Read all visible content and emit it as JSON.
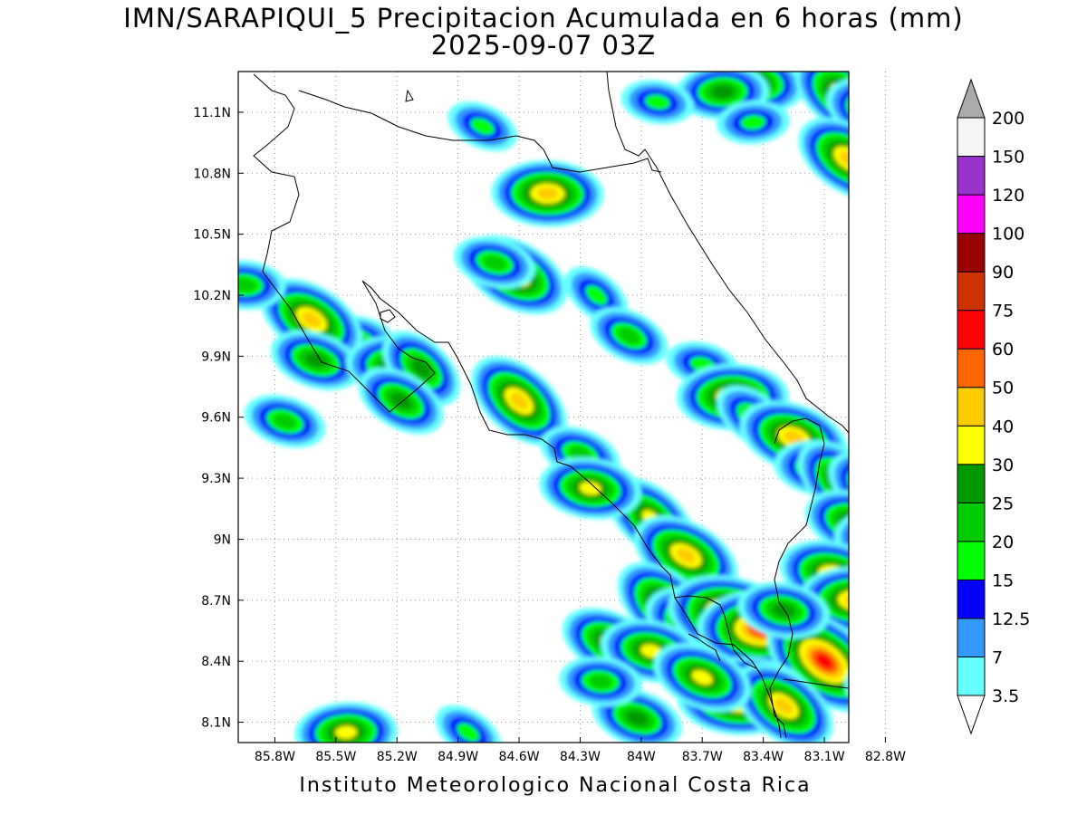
{
  "title_line1": "IMN/SARAPIQUI_5 Precipitacion Acumulada en 6 horas (mm)",
  "title_line2": "2025-09-07 03Z",
  "credit": "Instituto Meteorologico Nacional Costa Rica",
  "map": {
    "lon_labels": [
      "85.8W",
      "85.5W",
      "85.2W",
      "84.9W",
      "84.6W",
      "84.3W",
      "84W",
      "83.7W",
      "83.4W",
      "83.1W",
      "82.8W"
    ],
    "lat_labels": [
      "11.1N",
      "10.8N",
      "10.5N",
      "10.2N",
      "9.9N",
      "9.6N",
      "9.3N",
      "9N",
      "8.7N",
      "8.4N",
      "8.1N"
    ]
  },
  "colorbar": {
    "levels": [
      {
        "label": "3.5",
        "color": "#66ffff"
      },
      {
        "label": "7",
        "color": "#3399ff"
      },
      {
        "label": "12.5",
        "color": "#0000ff"
      },
      {
        "label": "15",
        "color": "#00ff00"
      },
      {
        "label": "20",
        "color": "#00cc00"
      },
      {
        "label": "25",
        "color": "#009900"
      },
      {
        "label": "30",
        "color": "#ffff00"
      },
      {
        "label": "40",
        "color": "#ffcc00"
      },
      {
        "label": "50",
        "color": "#ff6600"
      },
      {
        "label": "60",
        "color": "#ff0000"
      },
      {
        "label": "75",
        "color": "#cc3300"
      },
      {
        "label": "90",
        "color": "#990000"
      },
      {
        "label": "100",
        "color": "#ff00ff"
      },
      {
        "label": "120",
        "color": "#9933cc"
      },
      {
        "label": "150",
        "color": "#f5f5f5"
      },
      {
        "label": "200",
        "color": "#aaaaaa"
      }
    ]
  },
  "rain_cells": [
    {
      "lon": -85.46,
      "lat": 9.95,
      "max": 30
    },
    {
      "lon": -85.62,
      "lat": 10.08,
      "max": 40
    },
    {
      "lon": -85.6,
      "lat": 9.88,
      "max": 25
    },
    {
      "lon": -85.2,
      "lat": 9.85,
      "max": 30
    },
    {
      "lon": -85.08,
      "lat": 9.84,
      "max": 25
    },
    {
      "lon": -85.18,
      "lat": 9.68,
      "max": 25
    },
    {
      "lon": -85.75,
      "lat": 9.58,
      "max": 20
    },
    {
      "lon": -85.95,
      "lat": 10.25,
      "max": 20
    },
    {
      "lon": -84.6,
      "lat": 9.68,
      "max": 40
    },
    {
      "lon": -84.62,
      "lat": 10.3,
      "max": 40
    },
    {
      "lon": -84.72,
      "lat": 10.36,
      "max": 20
    },
    {
      "lon": -84.46,
      "lat": 10.7,
      "max": 40
    },
    {
      "lon": -84.22,
      "lat": 10.2,
      "max": 15
    },
    {
      "lon": -84.06,
      "lat": 10.0,
      "max": 20
    },
    {
      "lon": -83.7,
      "lat": 9.86,
      "max": 15
    },
    {
      "lon": -83.55,
      "lat": 9.7,
      "max": 40
    },
    {
      "lon": -83.45,
      "lat": 9.6,
      "max": 20
    },
    {
      "lon": -84.78,
      "lat": 11.03,
      "max": 15
    },
    {
      "lon": -83.45,
      "lat": 11.25,
      "max": 30
    },
    {
      "lon": -83.6,
      "lat": 11.2,
      "max": 25
    },
    {
      "lon": -83.0,
      "lat": 11.18,
      "max": 40
    },
    {
      "lon": -82.85,
      "lat": 11.1,
      "max": 30
    },
    {
      "lon": -83.92,
      "lat": 11.15,
      "max": 15
    },
    {
      "lon": -83.45,
      "lat": 11.05,
      "max": 15
    },
    {
      "lon": -82.98,
      "lat": 10.87,
      "max": 40
    },
    {
      "lon": -83.25,
      "lat": 9.5,
      "max": 40
    },
    {
      "lon": -83.12,
      "lat": 9.35,
      "max": 25
    },
    {
      "lon": -83.02,
      "lat": 9.28,
      "max": 30
    },
    {
      "lon": -82.85,
      "lat": 9.25,
      "max": 30
    },
    {
      "lon": -82.95,
      "lat": 9.08,
      "max": 30
    },
    {
      "lon": -82.8,
      "lat": 9.0,
      "max": 30
    },
    {
      "lon": -83.95,
      "lat": 9.1,
      "max": 30
    },
    {
      "lon": -83.78,
      "lat": 8.92,
      "max": 40
    },
    {
      "lon": -83.05,
      "lat": 8.82,
      "max": 40
    },
    {
      "lon": -82.95,
      "lat": 8.7,
      "max": 40
    },
    {
      "lon": -83.88,
      "lat": 8.67,
      "max": 40
    },
    {
      "lon": -83.72,
      "lat": 8.57,
      "max": 40
    },
    {
      "lon": -83.55,
      "lat": 8.62,
      "max": 60
    },
    {
      "lon": -83.4,
      "lat": 8.56,
      "max": 60
    },
    {
      "lon": -83.1,
      "lat": 8.4,
      "max": 60
    },
    {
      "lon": -84.15,
      "lat": 8.49,
      "max": 30
    },
    {
      "lon": -83.95,
      "lat": 8.45,
      "max": 30
    },
    {
      "lon": -83.5,
      "lat": 8.23,
      "max": 60
    },
    {
      "lon": -83.3,
      "lat": 8.18,
      "max": 40
    },
    {
      "lon": -83.7,
      "lat": 8.32,
      "max": 30
    },
    {
      "lon": -83.3,
      "lat": 8.65,
      "max": 25
    },
    {
      "lon": -85.45,
      "lat": 8.05,
      "max": 30
    },
    {
      "lon": -84.85,
      "lat": 8.05,
      "max": 15
    },
    {
      "lon": -84.3,
      "lat": 9.42,
      "max": 20
    },
    {
      "lon": -84.25,
      "lat": 9.25,
      "max": 30
    },
    {
      "lon": -82.75,
      "lat": 8.3,
      "max": 30
    },
    {
      "lon": -82.72,
      "lat": 8.62,
      "max": 30
    },
    {
      "lon": -84.02,
      "lat": 8.12,
      "max": 25
    },
    {
      "lon": -84.2,
      "lat": 8.3,
      "max": 20
    }
  ]
}
